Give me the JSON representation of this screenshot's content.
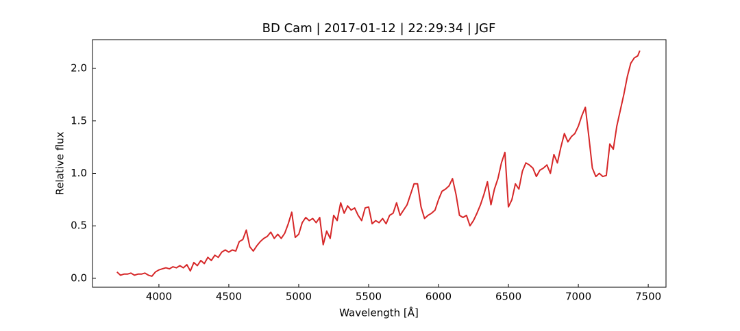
{
  "chart_data": {
    "type": "line",
    "title": "BD Cam | 2017-01-12 | 22:29:34 | JGF",
    "xlabel": "Wavelength [Å]",
    "ylabel": "Relative flux",
    "x": [
      3700,
      3725,
      3750,
      3775,
      3800,
      3825,
      3850,
      3875,
      3900,
      3925,
      3950,
      3975,
      4000,
      4025,
      4050,
      4075,
      4100,
      4125,
      4150,
      4175,
      4200,
      4225,
      4250,
      4275,
      4300,
      4325,
      4350,
      4375,
      4400,
      4425,
      4450,
      4475,
      4500,
      4525,
      4550,
      4575,
      4600,
      4625,
      4650,
      4675,
      4700,
      4725,
      4750,
      4775,
      4800,
      4825,
      4850,
      4875,
      4900,
      4925,
      4950,
      4975,
      5000,
      5025,
      5050,
      5075,
      5100,
      5125,
      5150,
      5175,
      5200,
      5225,
      5250,
      5275,
      5300,
      5325,
      5350,
      5375,
      5400,
      5425,
      5450,
      5475,
      5500,
      5525,
      5550,
      5575,
      5600,
      5625,
      5650,
      5675,
      5700,
      5725,
      5750,
      5775,
      5800,
      5825,
      5850,
      5875,
      5900,
      5925,
      5950,
      5975,
      6000,
      6025,
      6050,
      6075,
      6100,
      6125,
      6150,
      6175,
      6200,
      6225,
      6250,
      6275,
      6300,
      6325,
      6350,
      6375,
      6400,
      6425,
      6450,
      6475,
      6500,
      6525,
      6550,
      6575,
      6600,
      6625,
      6650,
      6675,
      6700,
      6725,
      6750,
      6775,
      6800,
      6825,
      6850,
      6875,
      6900,
      6925,
      6950,
      6975,
      7000,
      7025,
      7050,
      7075,
      7100,
      7125,
      7150,
      7175,
      7200,
      7225,
      7250,
      7275,
      7300,
      7325,
      7350,
      7375,
      7400,
      7425,
      7440
    ],
    "series": [
      {
        "name": "BD Cam",
        "color": "#d62728",
        "values": [
          0.06,
          0.03,
          0.04,
          0.04,
          0.05,
          0.03,
          0.04,
          0.04,
          0.05,
          0.03,
          0.02,
          0.06,
          0.08,
          0.09,
          0.1,
          0.09,
          0.11,
          0.1,
          0.12,
          0.1,
          0.13,
          0.07,
          0.15,
          0.12,
          0.17,
          0.14,
          0.2,
          0.17,
          0.22,
          0.2,
          0.25,
          0.27,
          0.25,
          0.27,
          0.26,
          0.35,
          0.37,
          0.46,
          0.3,
          0.26,
          0.31,
          0.35,
          0.38,
          0.4,
          0.44,
          0.38,
          0.42,
          0.38,
          0.43,
          0.52,
          0.63,
          0.39,
          0.42,
          0.53,
          0.58,
          0.55,
          0.57,
          0.53,
          0.58,
          0.32,
          0.45,
          0.38,
          0.6,
          0.55,
          0.72,
          0.62,
          0.69,
          0.65,
          0.67,
          0.6,
          0.55,
          0.67,
          0.68,
          0.52,
          0.55,
          0.53,
          0.57,
          0.52,
          0.6,
          0.62,
          0.72,
          0.6,
          0.65,
          0.7,
          0.8,
          0.9,
          0.9,
          0.68,
          0.57,
          0.6,
          0.62,
          0.65,
          0.75,
          0.83,
          0.85,
          0.88,
          0.95,
          0.8,
          0.6,
          0.58,
          0.6,
          0.5,
          0.55,
          0.62,
          0.7,
          0.8,
          0.92,
          0.7,
          0.85,
          0.95,
          1.1,
          1.2,
          0.68,
          0.75,
          0.9,
          0.85,
          1.02,
          1.1,
          1.08,
          1.05,
          0.97,
          1.03,
          1.05,
          1.08,
          1.0,
          1.18,
          1.1,
          1.25,
          1.38,
          1.3,
          1.35,
          1.38,
          1.45,
          1.55,
          1.63,
          1.35,
          1.05,
          0.97,
          1.0,
          0.97,
          0.98,
          1.28,
          1.23,
          1.45,
          1.6,
          1.75,
          1.92,
          2.05,
          2.1,
          2.12,
          2.17
        ]
      }
    ],
    "xlim": [
      3525,
      7627
    ],
    "ylim": [
      -0.085,
      2.274
    ],
    "xticks": [
      4000,
      4500,
      5000,
      5500,
      6000,
      6500,
      7000,
      7500
    ],
    "yticks": [
      {
        "value": 0,
        "label": "0.0"
      },
      {
        "value": 0.5,
        "label": "0.5"
      },
      {
        "value": 1,
        "label": "1.0"
      },
      {
        "value": 1.5,
        "label": "1.5"
      },
      {
        "value": 2,
        "label": "2.0"
      }
    ]
  }
}
